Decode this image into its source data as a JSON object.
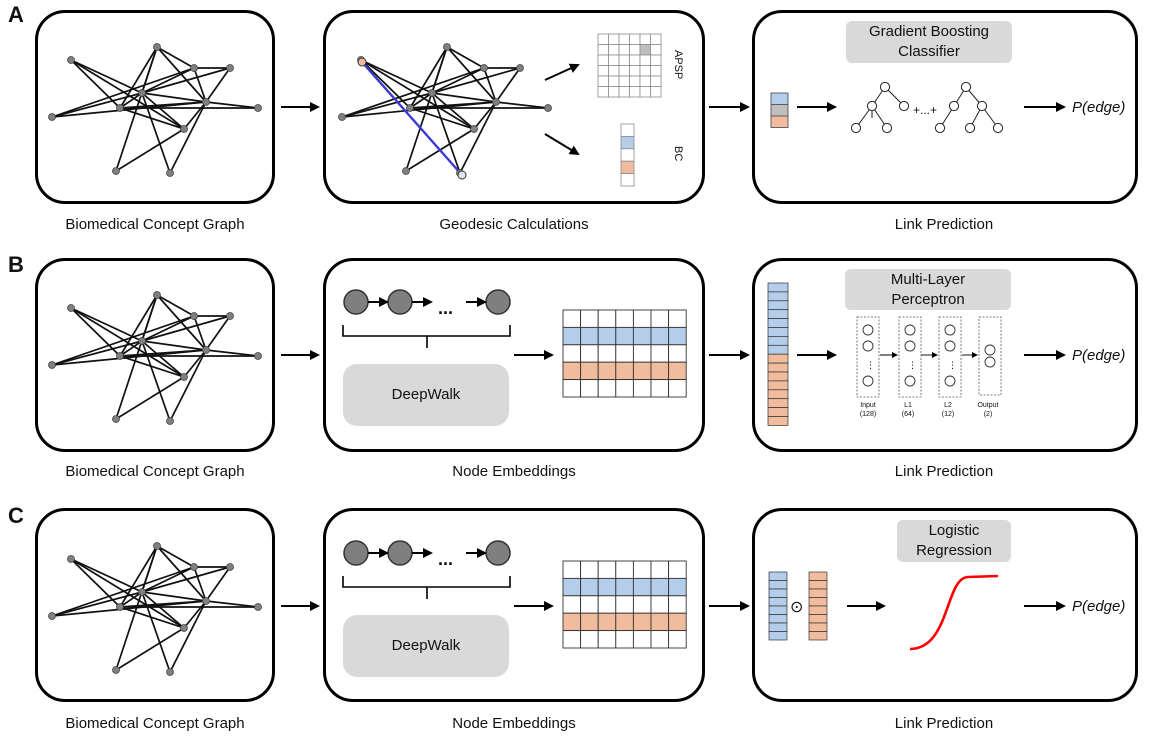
{
  "rows": [
    {
      "letter": "A",
      "captions": [
        "Biomedical Concept Graph",
        "Geodesic Calculations",
        "Link Prediction"
      ],
      "model_label": "Gradient Boosting Classifier",
      "labels": {
        "apsp": "APSP",
        "bc": "BC",
        "ensemble": "+...+"
      },
      "output": "P(edge)"
    },
    {
      "letter": "B",
      "captions": [
        "Biomedical Concept Graph",
        "Node Embeddings",
        "Link Prediction"
      ],
      "method_label": "DeepWalk",
      "model_label": "Multi-Layer Perceptron",
      "walk_ellipsis": "...",
      "mlp_layers": [
        {
          "name": "Input",
          "size": "(128)"
        },
        {
          "name": "L1",
          "size": "(64)"
        },
        {
          "name": "L2",
          "size": "(12)"
        },
        {
          "name": "Output",
          "size": "(2)"
        }
      ],
      "output": "P(edge)"
    },
    {
      "letter": "C",
      "captions": [
        "Biomedical Concept Graph",
        "Node Embeddings",
        "Link Prediction"
      ],
      "method_label": "DeepWalk",
      "model_label": "Logistic Regression",
      "walk_ellipsis": "...",
      "operator": "⊙",
      "output": "P(edge)"
    }
  ],
  "colors": {
    "blue": "#b4cdea",
    "orange": "#f1bc9e",
    "gray_cell": "#bfbfbf",
    "highlight_edge": "#3b3bd1",
    "sigmoid": "#ff0000",
    "node": "#7f7f7f",
    "panel_label_bg": "#d9d9d9"
  }
}
